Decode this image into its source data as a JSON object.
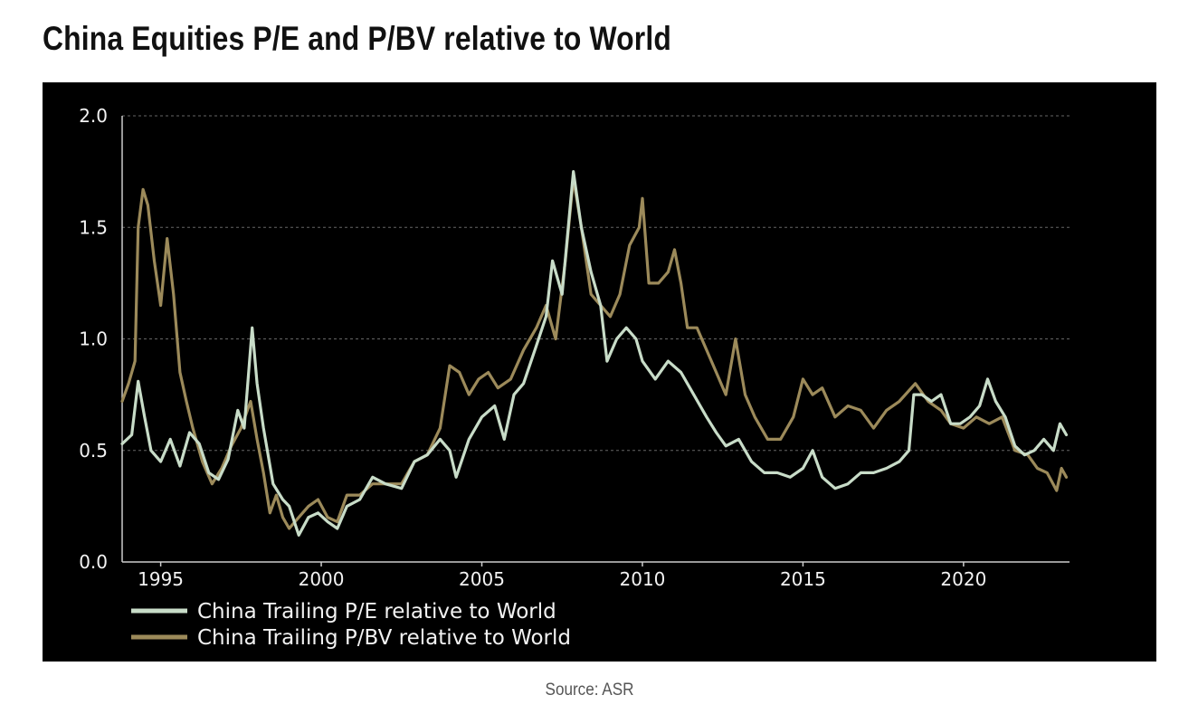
{
  "title": "China Equities P/E and P/BV relative to World",
  "source": "Source: ASR",
  "colors": {
    "background": "#000000",
    "pe": "#c8dcc8",
    "pbv": "#9c8a5a",
    "grid": "#666666",
    "axis": "#cccccc"
  },
  "chart_data": {
    "type": "line",
    "xlim": [
      1993.8,
      2023.3
    ],
    "ylim": [
      0,
      2
    ],
    "x_ticks": [
      1995,
      2000,
      2005,
      2010,
      2015,
      2020
    ],
    "y_ticks": [
      "0.0",
      "0.5",
      "1.0",
      "1.5",
      "2.0"
    ],
    "grid": "horizontal dashed",
    "legend_position": "bottom-left",
    "series": [
      {
        "name": "China Trailing P/E relative to World",
        "color": "#c8dcc8",
        "points": [
          [
            1993.8,
            0.53
          ],
          [
            1994.1,
            0.57
          ],
          [
            1994.3,
            0.81
          ],
          [
            1994.5,
            0.65
          ],
          [
            1994.7,
            0.5
          ],
          [
            1995.0,
            0.45
          ],
          [
            1995.3,
            0.55
          ],
          [
            1995.6,
            0.43
          ],
          [
            1995.9,
            0.58
          ],
          [
            1996.2,
            0.53
          ],
          [
            1996.5,
            0.4
          ],
          [
            1996.8,
            0.37
          ],
          [
            1997.1,
            0.46
          ],
          [
            1997.4,
            0.68
          ],
          [
            1997.6,
            0.6
          ],
          [
            1997.85,
            1.05
          ],
          [
            1998.0,
            0.8
          ],
          [
            1998.2,
            0.6
          ],
          [
            1998.5,
            0.35
          ],
          [
            1998.8,
            0.28
          ],
          [
            1999.0,
            0.25
          ],
          [
            1999.3,
            0.12
          ],
          [
            1999.6,
            0.2
          ],
          [
            1999.9,
            0.22
          ],
          [
            2000.2,
            0.18
          ],
          [
            2000.5,
            0.15
          ],
          [
            2000.8,
            0.25
          ],
          [
            2001.2,
            0.28
          ],
          [
            2001.6,
            0.38
          ],
          [
            2002.0,
            0.35
          ],
          [
            2002.5,
            0.33
          ],
          [
            2002.9,
            0.45
          ],
          [
            2003.3,
            0.48
          ],
          [
            2003.7,
            0.55
          ],
          [
            2004.0,
            0.5
          ],
          [
            2004.2,
            0.38
          ],
          [
            2004.6,
            0.55
          ],
          [
            2005.0,
            0.65
          ],
          [
            2005.4,
            0.7
          ],
          [
            2005.7,
            0.55
          ],
          [
            2006.0,
            0.75
          ],
          [
            2006.3,
            0.8
          ],
          [
            2006.7,
            0.97
          ],
          [
            2007.0,
            1.1
          ],
          [
            2007.2,
            1.35
          ],
          [
            2007.5,
            1.2
          ],
          [
            2007.85,
            1.75
          ],
          [
            2008.1,
            1.5
          ],
          [
            2008.4,
            1.3
          ],
          [
            2008.7,
            1.15
          ],
          [
            2008.9,
            0.9
          ],
          [
            2009.2,
            1.0
          ],
          [
            2009.5,
            1.05
          ],
          [
            2009.8,
            1.0
          ],
          [
            2010.0,
            0.9
          ],
          [
            2010.4,
            0.82
          ],
          [
            2010.8,
            0.9
          ],
          [
            2011.2,
            0.85
          ],
          [
            2011.6,
            0.75
          ],
          [
            2012.0,
            0.65
          ],
          [
            2012.3,
            0.58
          ],
          [
            2012.6,
            0.52
          ],
          [
            2013.0,
            0.55
          ],
          [
            2013.4,
            0.45
          ],
          [
            2013.8,
            0.4
          ],
          [
            2014.2,
            0.4
          ],
          [
            2014.6,
            0.38
          ],
          [
            2015.0,
            0.42
          ],
          [
            2015.3,
            0.5
          ],
          [
            2015.6,
            0.38
          ],
          [
            2016.0,
            0.33
          ],
          [
            2016.4,
            0.35
          ],
          [
            2016.8,
            0.4
          ],
          [
            2017.2,
            0.4
          ],
          [
            2017.6,
            0.42
          ],
          [
            2018.0,
            0.45
          ],
          [
            2018.3,
            0.5
          ],
          [
            2018.45,
            0.75
          ],
          [
            2018.7,
            0.75
          ],
          [
            2019.0,
            0.72
          ],
          [
            2019.3,
            0.75
          ],
          [
            2019.6,
            0.62
          ],
          [
            2019.9,
            0.62
          ],
          [
            2020.2,
            0.65
          ],
          [
            2020.5,
            0.7
          ],
          [
            2020.75,
            0.82
          ],
          [
            2021.0,
            0.72
          ],
          [
            2021.3,
            0.65
          ],
          [
            2021.6,
            0.52
          ],
          [
            2021.9,
            0.48
          ],
          [
            2022.2,
            0.5
          ],
          [
            2022.5,
            0.55
          ],
          [
            2022.8,
            0.5
          ],
          [
            2023.0,
            0.62
          ],
          [
            2023.2,
            0.57
          ]
        ]
      },
      {
        "name": "China Trailing P/BV relative to World",
        "color": "#9c8a5a",
        "points": [
          [
            1993.8,
            0.72
          ],
          [
            1994.0,
            0.8
          ],
          [
            1994.2,
            0.9
          ],
          [
            1994.3,
            1.5
          ],
          [
            1994.45,
            1.67
          ],
          [
            1994.6,
            1.6
          ],
          [
            1994.8,
            1.35
          ],
          [
            1995.0,
            1.15
          ],
          [
            1995.2,
            1.45
          ],
          [
            1995.4,
            1.2
          ],
          [
            1995.6,
            0.85
          ],
          [
            1995.8,
            0.72
          ],
          [
            1996.0,
            0.6
          ],
          [
            1996.3,
            0.45
          ],
          [
            1996.6,
            0.35
          ],
          [
            1996.9,
            0.42
          ],
          [
            1997.2,
            0.52
          ],
          [
            1997.5,
            0.6
          ],
          [
            1997.8,
            0.72
          ],
          [
            1998.0,
            0.55
          ],
          [
            1998.2,
            0.4
          ],
          [
            1998.4,
            0.22
          ],
          [
            1998.6,
            0.3
          ],
          [
            1998.8,
            0.2
          ],
          [
            1999.0,
            0.15
          ],
          [
            1999.3,
            0.2
          ],
          [
            1999.6,
            0.25
          ],
          [
            1999.9,
            0.28
          ],
          [
            2000.2,
            0.2
          ],
          [
            2000.5,
            0.18
          ],
          [
            2000.8,
            0.3
          ],
          [
            2001.2,
            0.3
          ],
          [
            2001.6,
            0.35
          ],
          [
            2002.0,
            0.35
          ],
          [
            2002.5,
            0.35
          ],
          [
            2002.9,
            0.45
          ],
          [
            2003.3,
            0.48
          ],
          [
            2003.7,
            0.6
          ],
          [
            2004.0,
            0.88
          ],
          [
            2004.3,
            0.85
          ],
          [
            2004.6,
            0.75
          ],
          [
            2004.9,
            0.82
          ],
          [
            2005.2,
            0.85
          ],
          [
            2005.5,
            0.78
          ],
          [
            2005.9,
            0.82
          ],
          [
            2006.3,
            0.95
          ],
          [
            2006.7,
            1.05
          ],
          [
            2007.0,
            1.15
          ],
          [
            2007.3,
            1.0
          ],
          [
            2007.6,
            1.35
          ],
          [
            2007.85,
            1.72
          ],
          [
            2008.1,
            1.5
          ],
          [
            2008.4,
            1.2
          ],
          [
            2008.7,
            1.15
          ],
          [
            2009.0,
            1.1
          ],
          [
            2009.3,
            1.2
          ],
          [
            2009.6,
            1.42
          ],
          [
            2009.9,
            1.5
          ],
          [
            2010.0,
            1.63
          ],
          [
            2010.2,
            1.25
          ],
          [
            2010.5,
            1.25
          ],
          [
            2010.8,
            1.3
          ],
          [
            2011.0,
            1.4
          ],
          [
            2011.2,
            1.25
          ],
          [
            2011.4,
            1.05
          ],
          [
            2011.7,
            1.05
          ],
          [
            2012.0,
            0.95
          ],
          [
            2012.3,
            0.85
          ],
          [
            2012.6,
            0.75
          ],
          [
            2012.9,
            1.0
          ],
          [
            2013.2,
            0.75
          ],
          [
            2013.5,
            0.65
          ],
          [
            2013.9,
            0.55
          ],
          [
            2014.3,
            0.55
          ],
          [
            2014.7,
            0.65
          ],
          [
            2015.0,
            0.82
          ],
          [
            2015.3,
            0.75
          ],
          [
            2015.6,
            0.78
          ],
          [
            2016.0,
            0.65
          ],
          [
            2016.4,
            0.7
          ],
          [
            2016.8,
            0.68
          ],
          [
            2017.2,
            0.6
          ],
          [
            2017.6,
            0.68
          ],
          [
            2018.0,
            0.72
          ],
          [
            2018.5,
            0.8
          ],
          [
            2018.9,
            0.72
          ],
          [
            2019.3,
            0.68
          ],
          [
            2019.6,
            0.62
          ],
          [
            2020.0,
            0.6
          ],
          [
            2020.4,
            0.65
          ],
          [
            2020.8,
            0.62
          ],
          [
            2021.2,
            0.65
          ],
          [
            2021.6,
            0.5
          ],
          [
            2022.0,
            0.48
          ],
          [
            2022.3,
            0.42
          ],
          [
            2022.6,
            0.4
          ],
          [
            2022.9,
            0.32
          ],
          [
            2023.05,
            0.42
          ],
          [
            2023.2,
            0.38
          ]
        ]
      }
    ]
  }
}
